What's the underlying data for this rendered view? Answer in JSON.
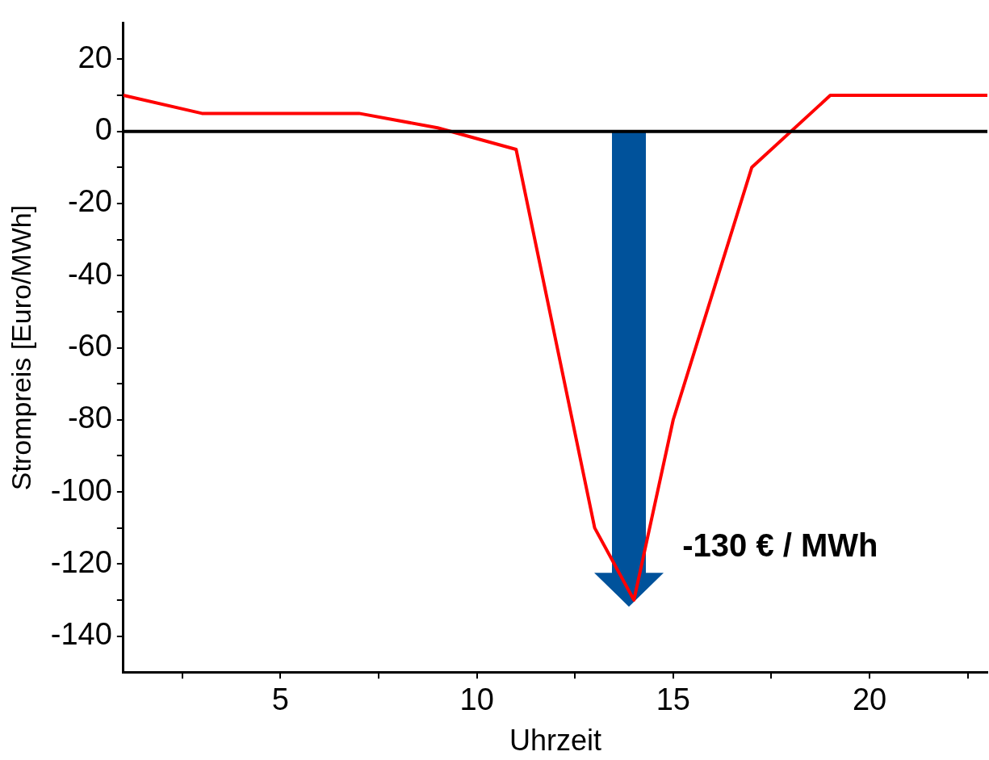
{
  "chart_data": {
    "type": "line",
    "xlabel": "Uhrzeit",
    "ylabel": "Strompreis [Euro/MWh]",
    "xlim": [
      1,
      23
    ],
    "xticks": [
      5,
      {
        "value": 7.5,
        "label": null
      },
      10,
      {
        "value": 12.5,
        "label": null
      },
      15,
      {
        "value": 17.5,
        "label": null
      },
      20,
      {
        "value": 22.5,
        "label": null
      },
      {
        "value": 2.5,
        "label": null
      }
    ],
    "ylim": [
      -150,
      30
    ],
    "yticks": [
      -140,
      {
        "value": -130,
        "label": null
      },
      -120,
      {
        "value": -110,
        "label": null
      },
      -100,
      {
        "value": -90,
        "label": null
      },
      -80,
      {
        "value": -70,
        "label": null
      },
      -60,
      {
        "value": -50,
        "label": null
      },
      -40,
      {
        "value": -30,
        "label": null
      },
      -20,
      {
        "value": -10,
        "label": null
      },
      0,
      {
        "value": 10,
        "label": null
      },
      20
    ],
    "series": [
      {
        "color": "#ff0000",
        "x": [
          1,
          3,
          7,
          9,
          11,
          13,
          14,
          15,
          17,
          19,
          23
        ],
        "values": [
          10,
          5,
          5,
          1,
          -5,
          -110,
          -130,
          -80,
          -10,
          10,
          10
        ]
      }
    ],
    "ref_lines": [
      {
        "axis": "y",
        "value": 0,
        "color": "#000000"
      }
    ],
    "annotations": [
      {
        "text": "-130 € / MWh",
        "x": 14,
        "y": -130
      }
    ],
    "grid": false,
    "legend": false,
    "marker": "none",
    "line_style": "solid"
  }
}
